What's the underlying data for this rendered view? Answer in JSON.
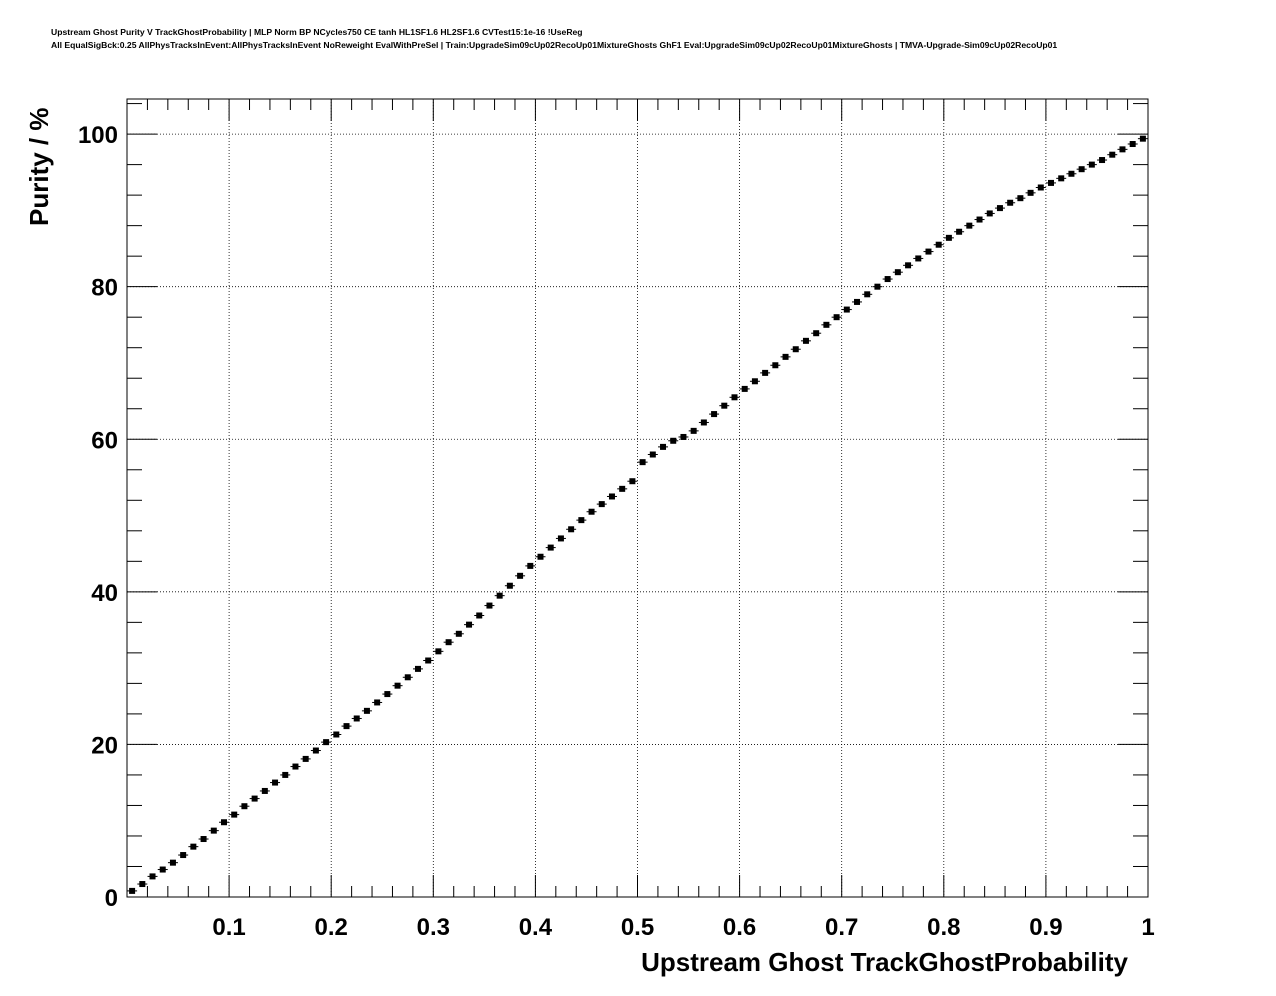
{
  "title_lines": [
    "Upstream Ghost Purity V TrackGhostProbability | MLP Norm BP NCycles750 CE tanh HL1SF1.6 HL2SF1.6 CVTest15:1e-16 !UseReg",
    "All EqualSigBck:0.25 AllPhysTracksInEvent:AllPhysTracksInEvent NoReweight EvalWithPreSel | Train:UpgradeSim09cUp02RecoUp01MixtureGhosts GhF1 Eval:UpgradeSim09cUp02RecoUp01MixtureGhosts | TMVA-Upgrade-Sim09cUp02RecoUp01"
  ],
  "chart_data": {
    "type": "scatter",
    "title": "Upstream Ghost Purity V TrackGhostProbability",
    "xlabel": "Upstream Ghost TrackGhostProbability",
    "ylabel": "Purity / %",
    "xlim": [
      0,
      1
    ],
    "ylim": [
      0,
      104.6
    ],
    "grid": true,
    "xticks": [
      "0.1",
      "0.2",
      "0.3",
      "0.4",
      "0.5",
      "0.6",
      "0.7",
      "0.8",
      "0.9",
      "1"
    ],
    "yticks": [
      "0",
      "20",
      "40",
      "60",
      "80",
      "100"
    ],
    "x_start": 0.005,
    "x_step": 0.01,
    "values": [
      0.8,
      1.7,
      2.7,
      3.6,
      4.5,
      5.5,
      6.6,
      7.6,
      8.7,
      9.8,
      10.8,
      11.9,
      12.9,
      13.9,
      15.0,
      16.0,
      17.1,
      18.1,
      19.2,
      20.3,
      21.3,
      22.4,
      23.4,
      24.4,
      25.5,
      26.6,
      27.7,
      28.8,
      29.9,
      31.0,
      32.2,
      33.4,
      34.5,
      35.7,
      36.9,
      38.2,
      39.5,
      40.8,
      42.1,
      43.4,
      44.6,
      45.8,
      47.0,
      48.2,
      49.4,
      50.5,
      51.5,
      52.5,
      53.5,
      54.5,
      57.0,
      58.0,
      59.0,
      59.8,
      60.3,
      61.1,
      62.2,
      63.3,
      64.4,
      65.5,
      66.6,
      67.6,
      68.7,
      69.7,
      70.8,
      71.8,
      72.9,
      73.9,
      75.0,
      76.0,
      77.0,
      78.0,
      79.0,
      80.0,
      81.0,
      81.9,
      82.8,
      83.7,
      84.6,
      85.5,
      86.4,
      87.2,
      88.0,
      88.8,
      89.6,
      90.3,
      91.0,
      91.6,
      92.3,
      93.0,
      93.6,
      94.2,
      94.8,
      95.4,
      96.0,
      96.6,
      97.3,
      98.0,
      98.7,
      99.4
    ],
    "marker_color": "#000000"
  }
}
